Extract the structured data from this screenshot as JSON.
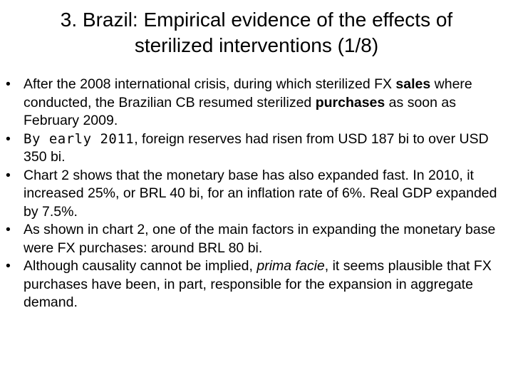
{
  "title": {
    "line1": "3. Brazil: Empirical evidence of the effects of",
    "line2": "sterilized interventions (1/8)"
  },
  "bullets": [
    {
      "a": "After the 2008 international crisis, during which sterilized FX ",
      "b": "sales",
      "c": " where conducted, the Brazilian CB resumed sterilized ",
      "d": "purchases",
      "e": " as soon as February 2009."
    },
    {
      "a": "By early 2011",
      "b": ", foreign reserves had risen from USD 187 bi to over USD 350 bi."
    },
    {
      "text": "Chart 2 shows that the monetary base has also expanded fast. In 2010, it increased 25%, or BRL 40 bi, for an inflation rate of 6%. Real GDP expanded by 7.5%."
    },
    {
      "text": "As shown in chart 2, one of the main factors in expanding the monetary base were FX purchases: around BRL 80 bi."
    },
    {
      "a": "Although causality cannot be implied, ",
      "b": "prima facie",
      "c": ", it seems plausible that FX purchases have been, in part, responsible for the expansion in aggregate demand."
    }
  ]
}
